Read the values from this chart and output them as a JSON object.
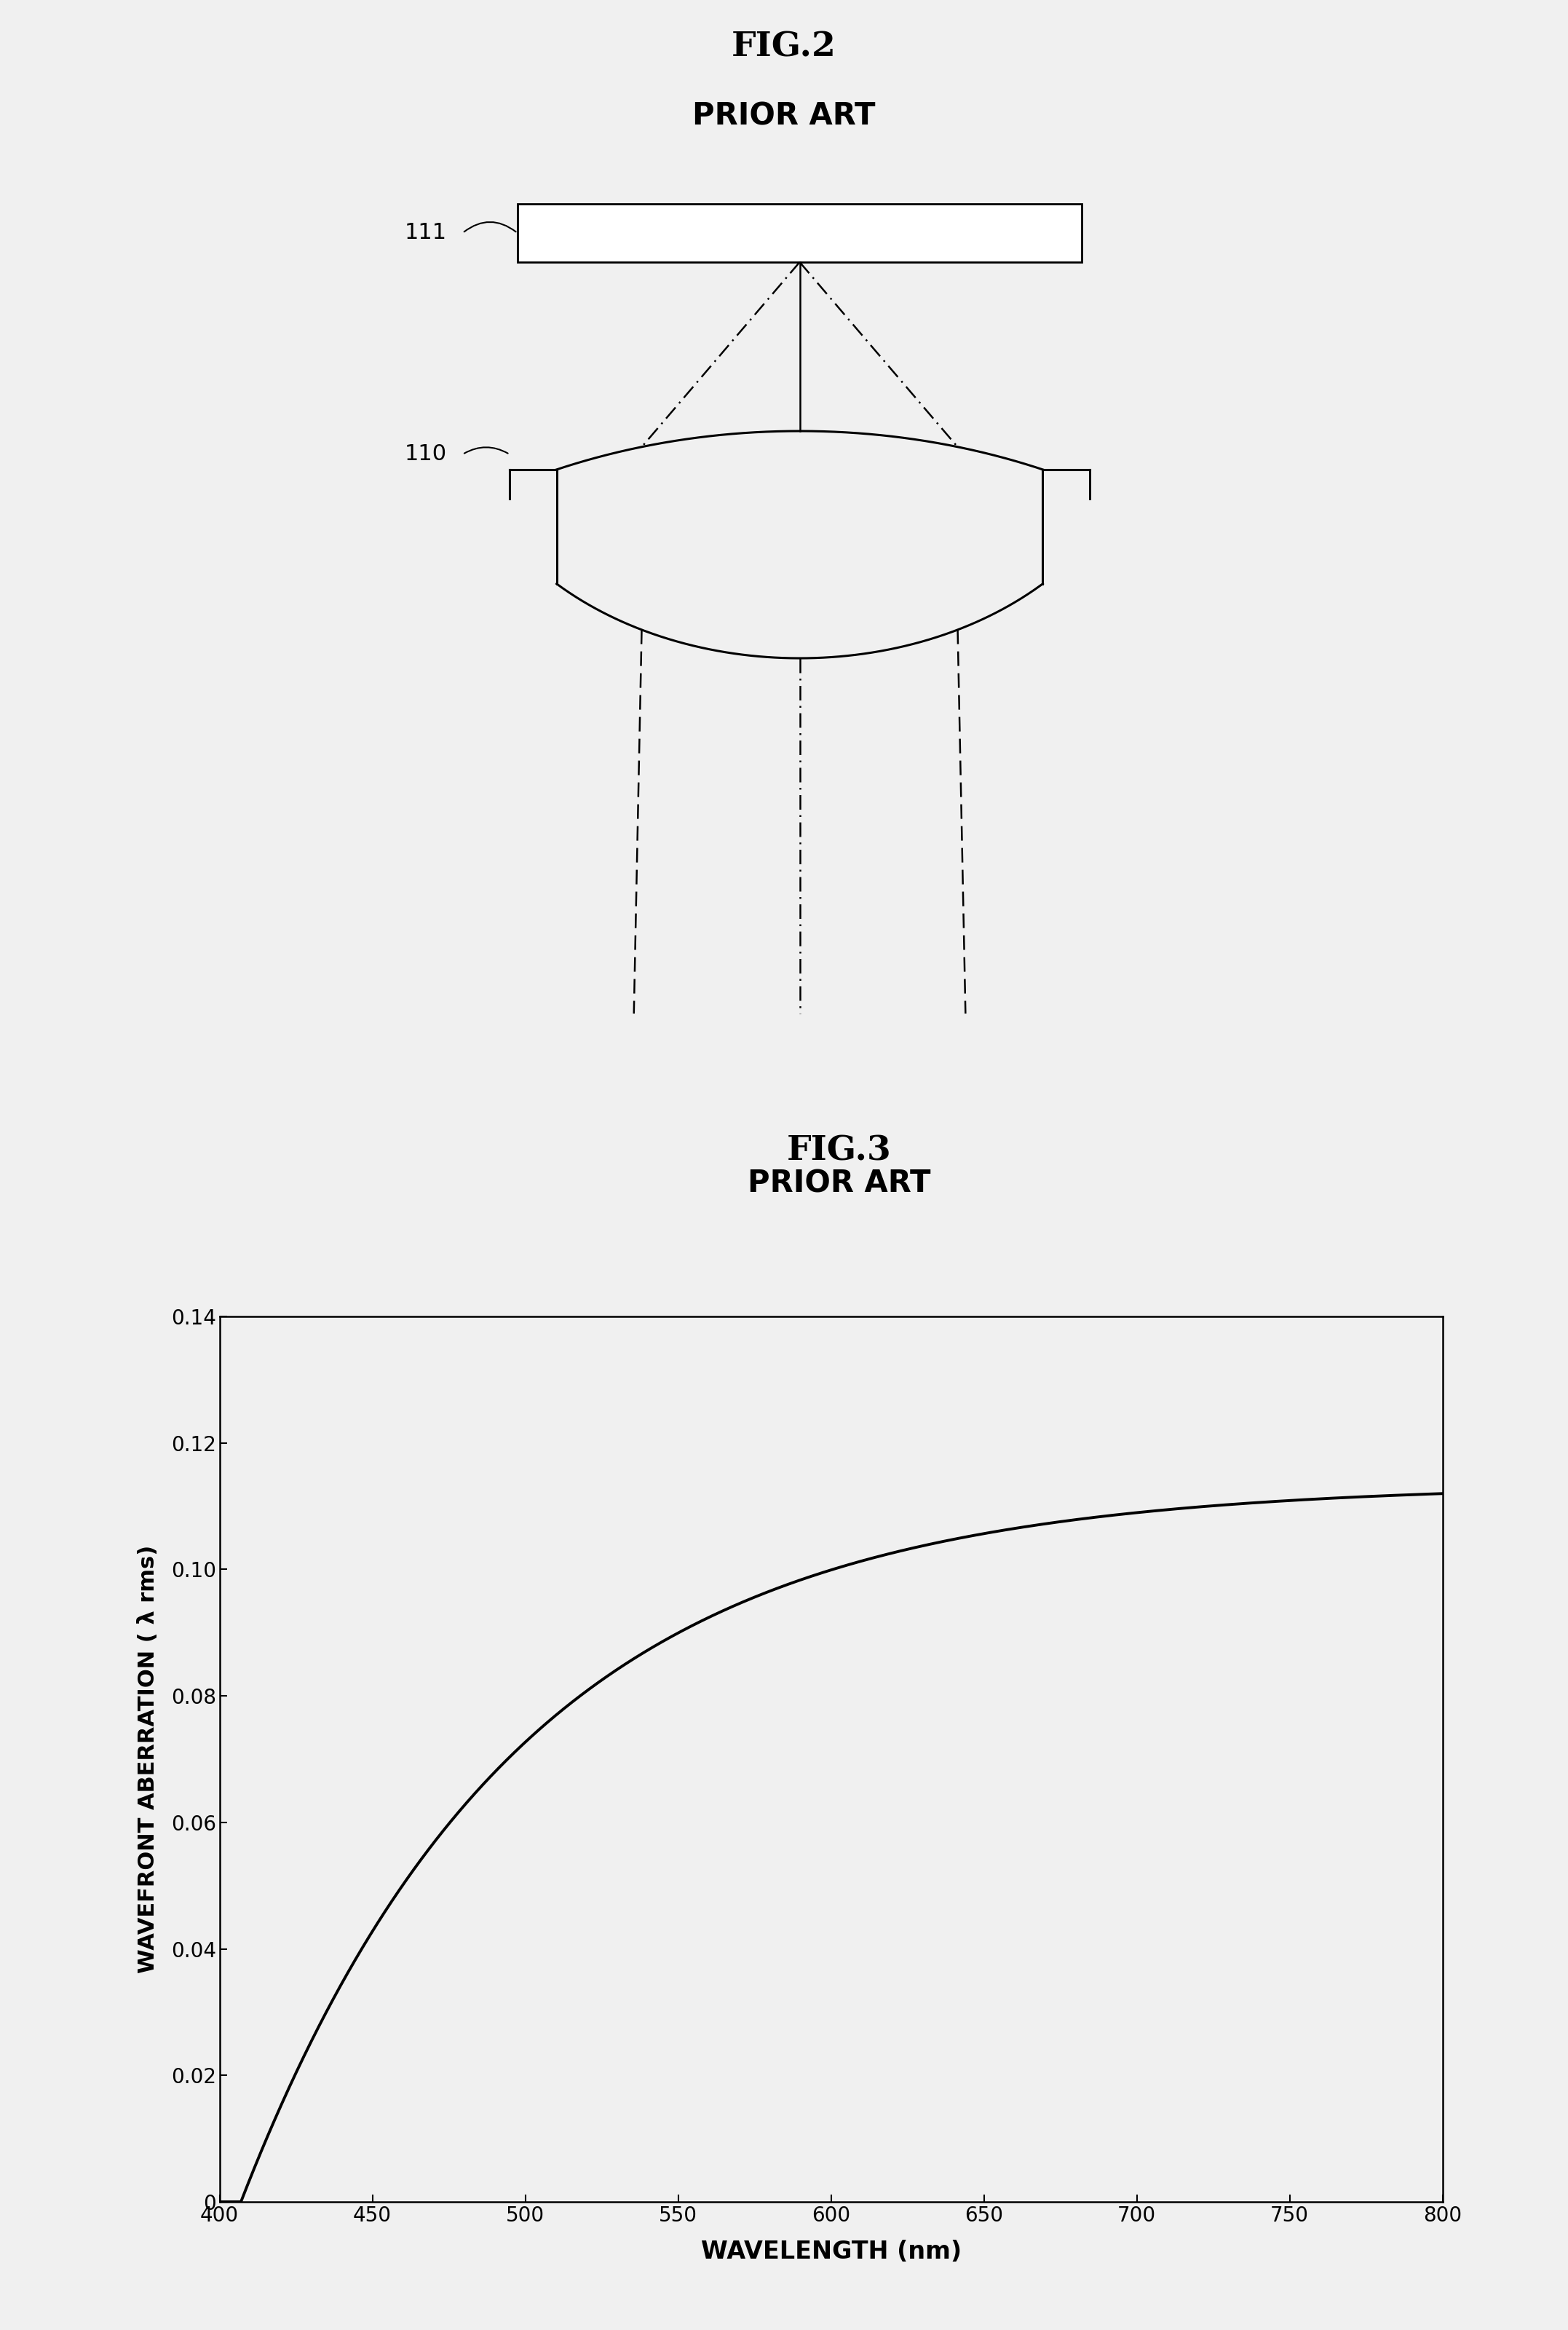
{
  "fig2_title": "FIG.2",
  "fig2_subtitle": "PRIOR ART",
  "fig3_title": "FIG.3",
  "fig3_subtitle": "PRIOR ART",
  "label_111": "111",
  "label_110": "110",
  "bg_color": "#f0f0f0",
  "line_color": "#000000",
  "plot_line_color": "#000000",
  "xlabel": "WAVELENGTH (nm)",
  "ylabel": "WAVEFRONT ABERRATION ( λ rms)",
  "xlim": [
    400,
    800
  ],
  "ylim": [
    0,
    0.14
  ],
  "xticks": [
    400,
    450,
    500,
    550,
    600,
    650,
    700,
    750,
    800
  ],
  "yticks": [
    0,
    0.02,
    0.04,
    0.06,
    0.08,
    0.1,
    0.12,
    0.14
  ],
  "title_fontsize": 34,
  "subtitle_fontsize": 30,
  "axis_label_fontsize": 22,
  "tick_fontsize": 20,
  "annotation_fontsize": 22
}
